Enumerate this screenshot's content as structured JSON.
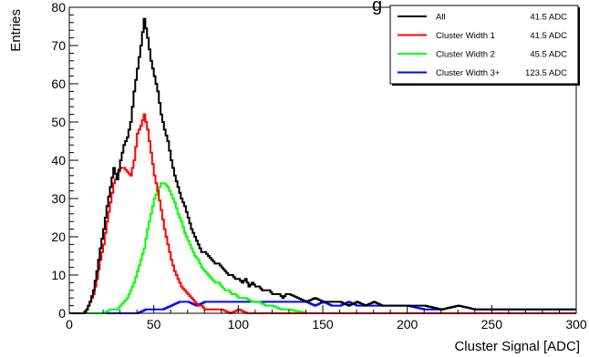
{
  "chart_data": {
    "type": "line",
    "title": "",
    "title_visible_fragment": "g",
    "xlabel": "Cluster Signal [ADC]",
    "ylabel": "Entries",
    "xlim": [
      0,
      300
    ],
    "ylim": [
      0,
      80
    ],
    "x_ticks": [
      0,
      50,
      100,
      150,
      200,
      250,
      300
    ],
    "y_ticks": [
      0,
      10,
      20,
      30,
      40,
      50,
      60,
      70,
      80
    ],
    "grid": false,
    "legend_position": "top-right",
    "bin_width": 1,
    "series": [
      {
        "name": "All",
        "legend_value": "41.5 ADC",
        "color": "#000000",
        "points": [
          [
            0,
            0
          ],
          [
            8,
            0
          ],
          [
            10,
            1
          ],
          [
            12,
            3
          ],
          [
            14,
            6
          ],
          [
            16,
            11
          ],
          [
            18,
            17
          ],
          [
            20,
            22
          ],
          [
            22,
            28
          ],
          [
            24,
            33
          ],
          [
            26,
            38
          ],
          [
            28,
            35
          ],
          [
            30,
            40
          ],
          [
            32,
            44
          ],
          [
            34,
            46
          ],
          [
            36,
            50
          ],
          [
            38,
            58
          ],
          [
            40,
            64
          ],
          [
            42,
            70
          ],
          [
            44,
            77
          ],
          [
            46,
            72
          ],
          [
            48,
            66
          ],
          [
            50,
            62
          ],
          [
            52,
            58
          ],
          [
            54,
            52
          ],
          [
            56,
            48
          ],
          [
            58,
            45
          ],
          [
            60,
            40
          ],
          [
            62,
            36
          ],
          [
            64,
            33
          ],
          [
            66,
            30
          ],
          [
            68,
            28
          ],
          [
            70,
            25
          ],
          [
            72,
            22
          ],
          [
            74,
            20
          ],
          [
            76,
            18
          ],
          [
            78,
            16
          ],
          [
            80,
            16
          ],
          [
            82,
            15
          ],
          [
            84,
            14
          ],
          [
            86,
            13
          ],
          [
            88,
            13
          ],
          [
            90,
            12
          ],
          [
            92,
            11
          ],
          [
            94,
            10
          ],
          [
            96,
            10
          ],
          [
            98,
            9
          ],
          [
            100,
            9
          ],
          [
            102,
            8
          ],
          [
            104,
            9
          ],
          [
            106,
            7
          ],
          [
            108,
            8
          ],
          [
            110,
            7
          ],
          [
            112,
            7
          ],
          [
            114,
            6
          ],
          [
            116,
            6
          ],
          [
            118,
            6
          ],
          [
            120,
            5
          ],
          [
            122,
            5
          ],
          [
            124,
            5
          ],
          [
            126,
            4
          ],
          [
            128,
            5
          ],
          [
            130,
            5
          ],
          [
            135,
            4
          ],
          [
            140,
            3
          ],
          [
            145,
            4
          ],
          [
            150,
            3
          ],
          [
            155,
            3
          ],
          [
            160,
            3
          ],
          [
            165,
            2
          ],
          [
            170,
            3
          ],
          [
            175,
            2
          ],
          [
            180,
            3
          ],
          [
            185,
            2
          ],
          [
            190,
            2
          ],
          [
            195,
            2
          ],
          [
            200,
            2
          ],
          [
            210,
            2
          ],
          [
            220,
            1
          ],
          [
            230,
            2
          ],
          [
            240,
            1
          ],
          [
            250,
            1
          ],
          [
            260,
            1
          ],
          [
            270,
            1
          ],
          [
            280,
            1
          ],
          [
            290,
            1
          ],
          [
            300,
            1
          ]
        ]
      },
      {
        "name": "Cluster Width 1",
        "legend_value": "41.5 ADC",
        "color": "#ff0000",
        "points": [
          [
            0,
            0
          ],
          [
            8,
            0
          ],
          [
            10,
            1
          ],
          [
            12,
            3
          ],
          [
            14,
            5
          ],
          [
            16,
            9
          ],
          [
            18,
            14
          ],
          [
            20,
            18
          ],
          [
            22,
            24
          ],
          [
            24,
            29
          ],
          [
            26,
            34
          ],
          [
            28,
            36
          ],
          [
            30,
            38
          ],
          [
            32,
            38
          ],
          [
            34,
            37
          ],
          [
            36,
            36
          ],
          [
            38,
            40
          ],
          [
            40,
            47
          ],
          [
            42,
            49
          ],
          [
            44,
            52
          ],
          [
            46,
            48
          ],
          [
            48,
            42
          ],
          [
            50,
            36
          ],
          [
            52,
            32
          ],
          [
            54,
            27
          ],
          [
            56,
            22
          ],
          [
            58,
            18
          ],
          [
            60,
            14
          ],
          [
            62,
            11
          ],
          [
            64,
            9
          ],
          [
            66,
            7
          ],
          [
            68,
            6
          ],
          [
            70,
            5
          ],
          [
            72,
            4
          ],
          [
            74,
            3
          ],
          [
            76,
            2
          ],
          [
            78,
            2
          ],
          [
            80,
            1
          ],
          [
            85,
            1
          ],
          [
            90,
            1
          ],
          [
            95,
            0
          ],
          [
            100,
            1
          ],
          [
            105,
            0
          ],
          [
            110,
            0
          ],
          [
            120,
            0
          ],
          [
            300,
            0
          ]
        ]
      },
      {
        "name": "Cluster Width 2",
        "legend_value": "45.5 ADC",
        "color": "#00ff00",
        "points": [
          [
            0,
            0
          ],
          [
            20,
            0
          ],
          [
            24,
            1
          ],
          [
            28,
            1
          ],
          [
            30,
            2
          ],
          [
            32,
            3
          ],
          [
            34,
            4
          ],
          [
            36,
            6
          ],
          [
            38,
            8
          ],
          [
            40,
            11
          ],
          [
            42,
            14
          ],
          [
            44,
            17
          ],
          [
            46,
            22
          ],
          [
            48,
            26
          ],
          [
            50,
            30
          ],
          [
            52,
            32
          ],
          [
            54,
            34
          ],
          [
            56,
            34
          ],
          [
            58,
            33
          ],
          [
            60,
            31
          ],
          [
            62,
            29
          ],
          [
            64,
            26
          ],
          [
            66,
            24
          ],
          [
            68,
            21
          ],
          [
            70,
            19
          ],
          [
            72,
            17
          ],
          [
            74,
            15
          ],
          [
            76,
            14
          ],
          [
            78,
            12
          ],
          [
            80,
            11
          ],
          [
            82,
            10
          ],
          [
            84,
            9
          ],
          [
            86,
            8
          ],
          [
            88,
            8
          ],
          [
            90,
            7
          ],
          [
            92,
            6
          ],
          [
            94,
            6
          ],
          [
            96,
            5
          ],
          [
            98,
            5
          ],
          [
            100,
            4
          ],
          [
            104,
            4
          ],
          [
            108,
            3
          ],
          [
            112,
            3
          ],
          [
            116,
            2
          ],
          [
            120,
            2
          ],
          [
            125,
            1
          ],
          [
            130,
            1
          ],
          [
            140,
            0
          ],
          [
            150,
            0
          ],
          [
            160,
            0
          ],
          [
            300,
            0
          ]
        ]
      },
      {
        "name": "Cluster Width 3+",
        "legend_value": "123.5 ADC",
        "color": "#0000ff",
        "points": [
          [
            0,
            0
          ],
          [
            40,
            0
          ],
          [
            45,
            1
          ],
          [
            50,
            1
          ],
          [
            55,
            1
          ],
          [
            60,
            2
          ],
          [
            65,
            3
          ],
          [
            70,
            3
          ],
          [
            75,
            2
          ],
          [
            80,
            3
          ],
          [
            85,
            3
          ],
          [
            90,
            3
          ],
          [
            95,
            3
          ],
          [
            100,
            3
          ],
          [
            105,
            3
          ],
          [
            110,
            3
          ],
          [
            115,
            3
          ],
          [
            120,
            3
          ],
          [
            125,
            3
          ],
          [
            130,
            3
          ],
          [
            135,
            3
          ],
          [
            140,
            3
          ],
          [
            145,
            2
          ],
          [
            150,
            3
          ],
          [
            155,
            2
          ],
          [
            160,
            2
          ],
          [
            165,
            3
          ],
          [
            170,
            2
          ],
          [
            175,
            2
          ],
          [
            180,
            2
          ],
          [
            185,
            2
          ],
          [
            190,
            2
          ],
          [
            195,
            2
          ],
          [
            200,
            2
          ],
          [
            210,
            1
          ],
          [
            220,
            1
          ],
          [
            230,
            2
          ],
          [
            240,
            1
          ],
          [
            250,
            1
          ],
          [
            260,
            1
          ],
          [
            270,
            1
          ],
          [
            280,
            1
          ],
          [
            290,
            1
          ],
          [
            300,
            1
          ]
        ]
      }
    ]
  }
}
